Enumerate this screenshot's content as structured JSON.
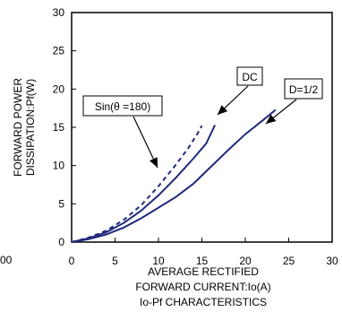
{
  "chart_data": {
    "type": "line",
    "title": "Io-Pf CHARACTERISTICS",
    "xlabel_lines": [
      "AVERAGE RECTIFIED",
      "FORWARD CURRENT:Io(A)"
    ],
    "ylabel_lines": [
      "FORWARD POWER",
      "DISSIPATION:Pf(W)"
    ],
    "xlim": [
      0,
      30
    ],
    "ylim": [
      0,
      30
    ],
    "x_ticks": [
      "0",
      "5",
      "10",
      "15",
      "20",
      "25",
      "30"
    ],
    "y_ticks": [
      "0",
      "5",
      "10",
      "15",
      "20",
      "25",
      "30"
    ],
    "grid": false,
    "stray_left_label": "00",
    "series": [
      {
        "name": "Sin(θ =180)",
        "style": "dashed",
        "color": "#1f2a7a",
        "points": [
          [
            0,
            0
          ],
          [
            2,
            0.6
          ],
          [
            4,
            1.5
          ],
          [
            6,
            2.9
          ],
          [
            8,
            4.8
          ],
          [
            10,
            7.3
          ],
          [
            12,
            10.1
          ],
          [
            13.5,
            12.4
          ],
          [
            14.5,
            14.2
          ],
          [
            15,
            15.2
          ]
        ]
      },
      {
        "name": "DC",
        "style": "solid",
        "color": "#1f2a7a",
        "points": [
          [
            0,
            0
          ],
          [
            2,
            0.5
          ],
          [
            4,
            1.3
          ],
          [
            6,
            2.5
          ],
          [
            8,
            4.1
          ],
          [
            10,
            6.1
          ],
          [
            12,
            8.4
          ],
          [
            14,
            10.9
          ],
          [
            15.5,
            12.9
          ],
          [
            16.5,
            15.3
          ]
        ]
      },
      {
        "name": "D=1/2",
        "style": "solid",
        "color": "#1f2a7a",
        "points": [
          [
            0,
            0
          ],
          [
            2,
            0.4
          ],
          [
            4,
            1.0
          ],
          [
            6,
            1.9
          ],
          [
            8,
            3.1
          ],
          [
            10,
            4.5
          ],
          [
            12,
            5.9
          ],
          [
            14,
            7.6
          ],
          [
            16,
            9.8
          ],
          [
            18,
            12.0
          ],
          [
            20,
            14.1
          ],
          [
            22,
            15.9
          ],
          [
            23.5,
            17.3
          ]
        ]
      }
    ],
    "annotations": [
      {
        "text": "DC",
        "box": true
      },
      {
        "text": "D=1/2",
        "box": true
      },
      {
        "text": "Sin(θ =180)",
        "box": true
      }
    ]
  }
}
